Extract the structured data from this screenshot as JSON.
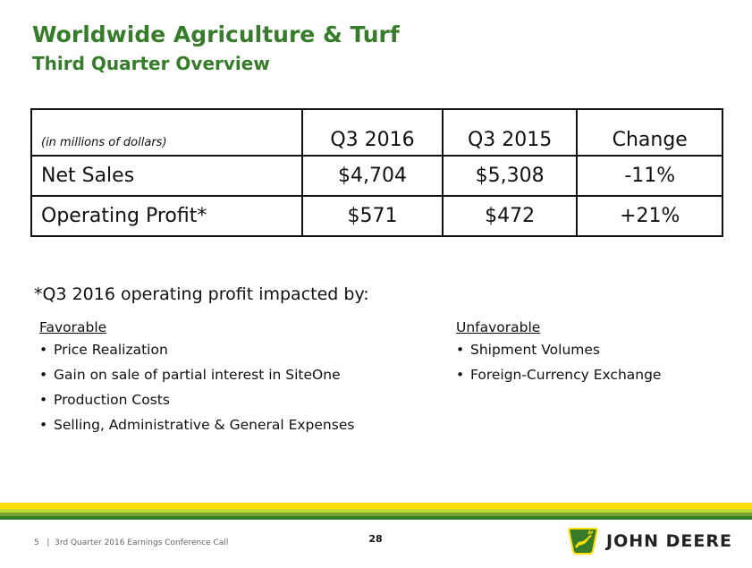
{
  "header": {
    "title": "Worldwide Agriculture & Turf",
    "subtitle": "Third Quarter Overview"
  },
  "table": {
    "units": "(in millions of dollars)",
    "columns": [
      "Q3 2016",
      "Q3 2015",
      "Change"
    ],
    "rows": [
      {
        "label": "Net Sales",
        "values": [
          "$4,704",
          "$5,308",
          "-11%"
        ]
      },
      {
        "label": "Operating Profit*",
        "values": [
          "$571",
          "$472",
          "+21%"
        ]
      }
    ]
  },
  "note": "*Q3 2016 operating profit impacted by:",
  "favorable": {
    "heading": "Favorable",
    "items": [
      "Price Realization",
      "Gain on sale of partial interest in SiteOne",
      "Production Costs",
      "Selling, Administrative & General Expenses"
    ]
  },
  "unfavorable": {
    "heading": "Unfavorable",
    "items": [
      "Shipment Volumes",
      "Foreign-Currency Exchange"
    ]
  },
  "footer": {
    "slide_number": "5",
    "separator": "|",
    "text": "3rd Quarter 2016 Earnings Conference Call",
    "page_number": "28"
  },
  "logo": {
    "brand": "JOHN DEERE"
  },
  "bullet": "•",
  "colors": {
    "green": "#367c2b",
    "yellow": "#ffde00"
  }
}
